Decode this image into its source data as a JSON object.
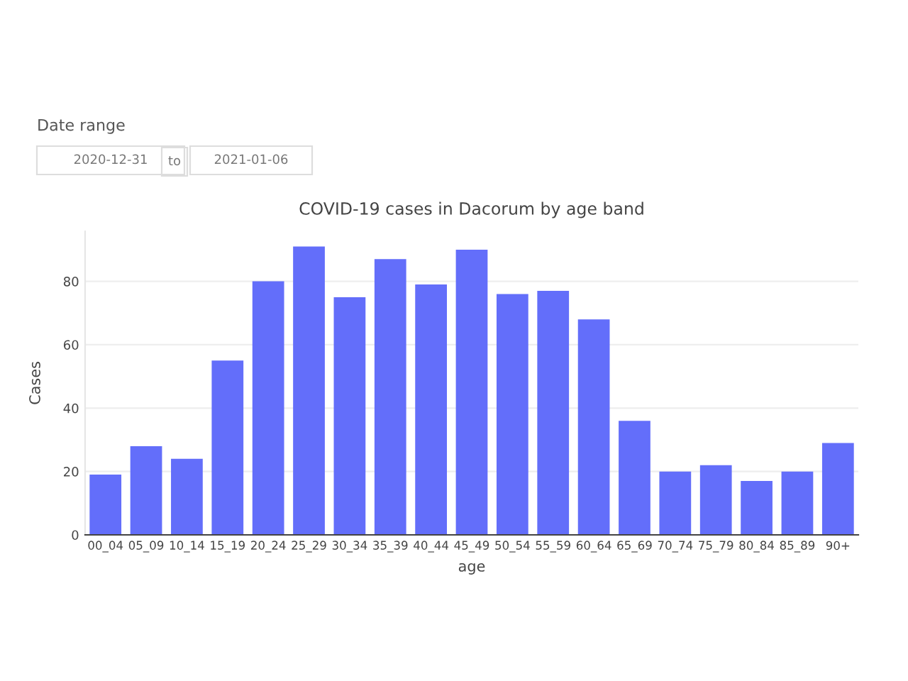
{
  "chart_data": {
    "type": "bar",
    "title": "COVID-19 cases in Dacorum by age band",
    "xlabel": "age",
    "ylabel": "Cases",
    "categories": [
      "00_04",
      "05_09",
      "10_14",
      "15_19",
      "20_24",
      "25_29",
      "30_34",
      "35_39",
      "40_44",
      "45_49",
      "50_54",
      "55_59",
      "60_64",
      "65_69",
      "70_74",
      "75_79",
      "80_84",
      "85_89",
      "90+"
    ],
    "values": [
      19,
      28,
      24,
      55,
      80,
      91,
      75,
      87,
      79,
      90,
      76,
      77,
      68,
      36,
      20,
      22,
      17,
      20,
      29
    ],
    "color": "#636efa",
    "ylim": [
      0,
      95.8
    ],
    "yticks": [
      0,
      20,
      40,
      60,
      80
    ],
    "grid": "y",
    "annotations": [
      "Date range",
      "2020-12-31",
      "to",
      "2021-01-06"
    ]
  }
}
